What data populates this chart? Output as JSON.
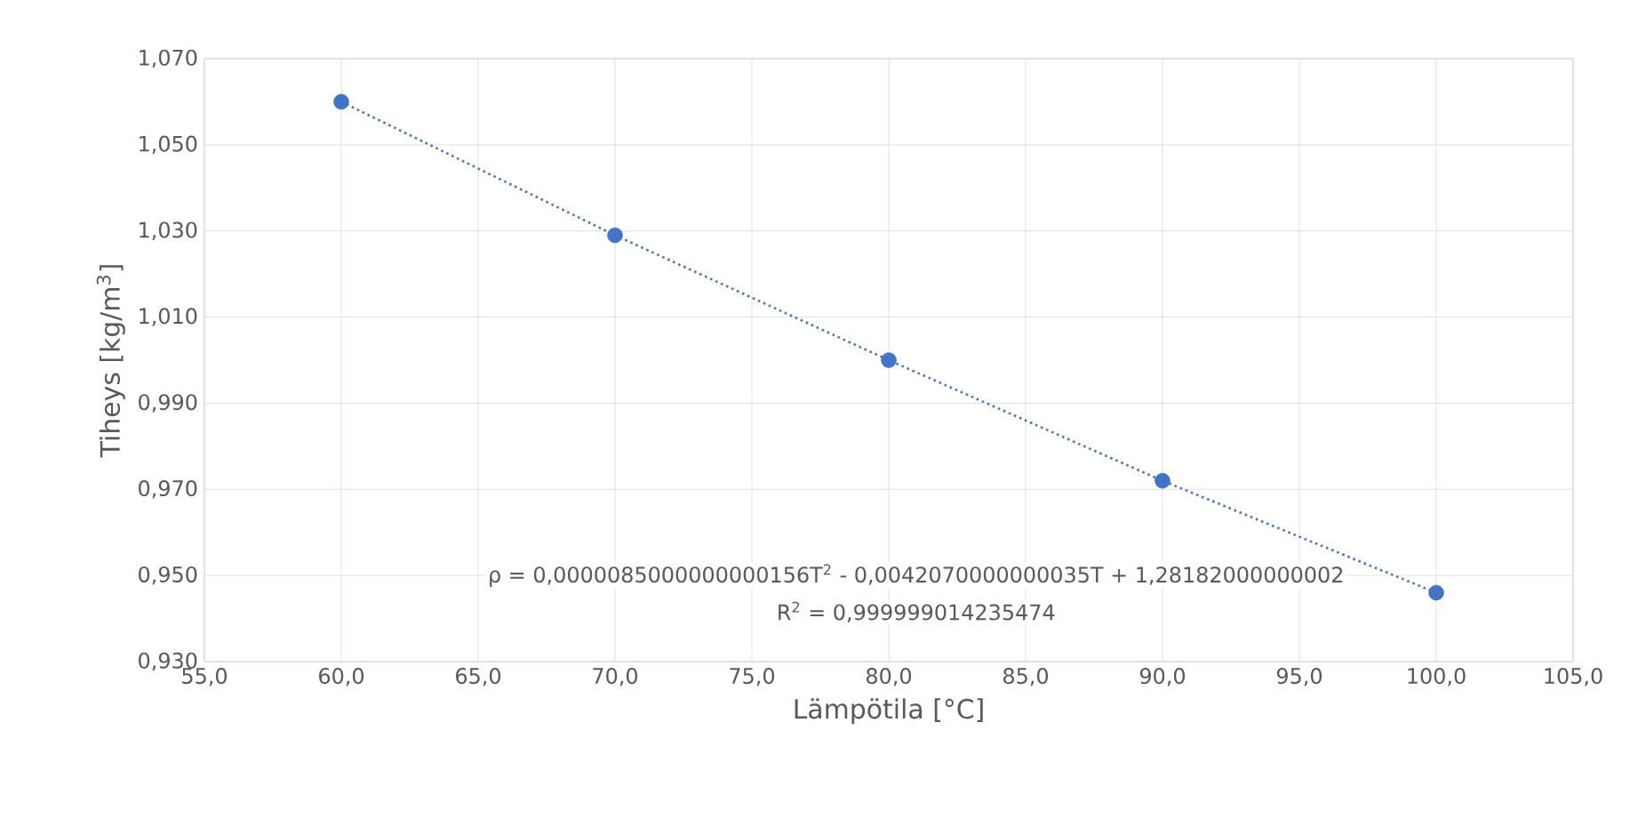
{
  "chart_data": {
    "type": "scatter",
    "xlabel": "Lämpötila [°C]",
    "ylabel": "Tiheys [kg/m$^{3}$]",
    "xlim": [
      55,
      105
    ],
    "ylim": [
      0.93,
      1.07
    ],
    "xticks": [
      {
        "value": 55,
        "label": "55,0"
      },
      {
        "value": 60,
        "label": "60,0"
      },
      {
        "value": 65,
        "label": "65,0"
      },
      {
        "value": 70,
        "label": "70,0"
      },
      {
        "value": 75,
        "label": "75,0"
      },
      {
        "value": 80,
        "label": "80,0"
      },
      {
        "value": 85,
        "label": "85,0"
      },
      {
        "value": 90,
        "label": "90,0"
      },
      {
        "value": 95,
        "label": "95,0"
      },
      {
        "value": 100,
        "label": "100,0"
      },
      {
        "value": 105,
        "label": "105,0"
      }
    ],
    "yticks": [
      {
        "value": 0.93,
        "label": "0,930"
      },
      {
        "value": 0.95,
        "label": "0,950"
      },
      {
        "value": 0.97,
        "label": "0,970"
      },
      {
        "value": 0.99,
        "label": "0,990"
      },
      {
        "value": 1.01,
        "label": "1,010"
      },
      {
        "value": 1.03,
        "label": "1,030"
      },
      {
        "value": 1.05,
        "label": "1,050"
      },
      {
        "value": 1.07,
        "label": "1,070"
      }
    ],
    "grid": true,
    "marker": "circle",
    "series": [
      {
        "color": "#4472c4",
        "x": [
          60,
          70,
          80,
          90,
          100
        ],
        "values": [
          1.06,
          1.029,
          1.0,
          0.972,
          0.946
        ]
      },
      {
        "type": "line",
        "line_style": "dotted",
        "marker": "none",
        "color": "#4472c4",
        "x": [
          60,
          70,
          80,
          90,
          100
        ],
        "values": [
          1.06,
          1.029,
          1.0,
          0.972,
          0.946
        ]
      }
    ],
    "annotations": [
      "ρ = 0,0000085000000000156T$^{2}$ - 0,0042070000000035T + 1,28182000000002",
      "R$^{2}$ = 0,999999014235474"
    ]
  }
}
